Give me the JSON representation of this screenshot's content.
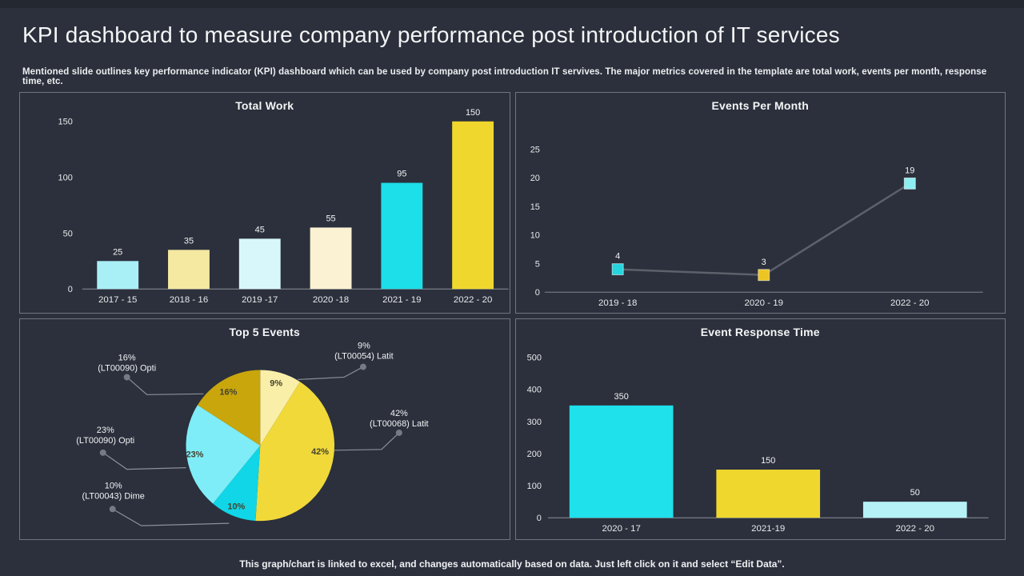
{
  "slide": {
    "title": "KPI dashboard to measure company performance post introduction of IT services",
    "subtitle": "Mentioned slide outlines key performance indicator (KPI) dashboard which can be used by company post introduction IT servives. The major metrics covered in the template are total work, events per month, response time, etc.",
    "footer": "This graph/chart is linked to excel, and changes automatically based on data. Just left click on it and select “Edit Data”."
  },
  "colors": {
    "background": "#2b303c",
    "panel_border": "#70767f",
    "axis_line": "#8b9099",
    "text_light": "#f2f3f4",
    "tick_text": "#e8eaec",
    "leader_line": "#8b9099",
    "leader_dot": "#757b85",
    "pie_inner_label": "#44432f",
    "line_stroke": "#5c616b"
  },
  "chart_data": [
    {
      "id": "total-work",
      "type": "bar",
      "title": "Total Work",
      "categories": [
        "2017 - 15",
        "2018 - 16",
        "2019 -17",
        "2020 -18",
        "2021 - 19",
        "2022 - 20"
      ],
      "values": [
        25,
        35,
        45,
        55,
        95,
        150
      ],
      "bar_colors": [
        "#a9eff6",
        "#f5e8a0",
        "#d8f7fb",
        "#fbf1d3",
        "#1cdfe9",
        "#f0d72e"
      ],
      "ylim": [
        0,
        150
      ],
      "yticks": [
        0,
        50,
        100,
        150
      ],
      "grid": false,
      "legend": "none",
      "data_labels": true
    },
    {
      "id": "events-per-month",
      "type": "line",
      "title": "Events Per Month",
      "categories": [
        "2019 - 18",
        "2020 - 19",
        "2022 - 20"
      ],
      "values": [
        4,
        3,
        19
      ],
      "marker_colors": [
        "#26d4de",
        "#ecc523",
        "#8deef2"
      ],
      "ylim": [
        0,
        25
      ],
      "yticks": [
        0,
        5,
        10,
        15,
        20,
        25
      ],
      "grid": false,
      "legend": "none",
      "data_labels": true
    },
    {
      "id": "top-5-events",
      "type": "pie",
      "title": "Top 5 Events",
      "start_angle_deg": 0,
      "direction": "clockwise",
      "slices": [
        {
          "pct": 9,
          "label": "9%",
          "callout": [
            "9%",
            "(LT00054) Latit"
          ],
          "color": "#f9efa9"
        },
        {
          "pct": 42,
          "label": "42%",
          "callout": [
            "42%",
            "(LT00068) Latit"
          ],
          "color": "#f1d93a"
        },
        {
          "pct": 10,
          "label": "10%",
          "callout": [
            "10%",
            "(LT00043) Dime"
          ],
          "color": "#10d6e7"
        },
        {
          "pct": 23,
          "label": "23%",
          "callout": [
            "23%",
            "(LT00090) Opti"
          ],
          "color": "#7fedf7"
        },
        {
          "pct": 16,
          "label": "16%",
          "callout": [
            "16%",
            "(LT00090) Opti"
          ],
          "color": "#c8a60c"
        }
      ]
    },
    {
      "id": "event-response-time",
      "type": "bar",
      "title": "Event Response Time",
      "categories": [
        "2020 - 17",
        "2021-19",
        "2022 - 20"
      ],
      "values": [
        350,
        150,
        50
      ],
      "bar_colors": [
        "#1fe1eb",
        "#f0d72e",
        "#b6f1f7"
      ],
      "ylim": [
        0,
        500
      ],
      "yticks": [
        0,
        100,
        200,
        300,
        400,
        500
      ],
      "grid": false,
      "legend": "none",
      "data_labels": true
    }
  ]
}
